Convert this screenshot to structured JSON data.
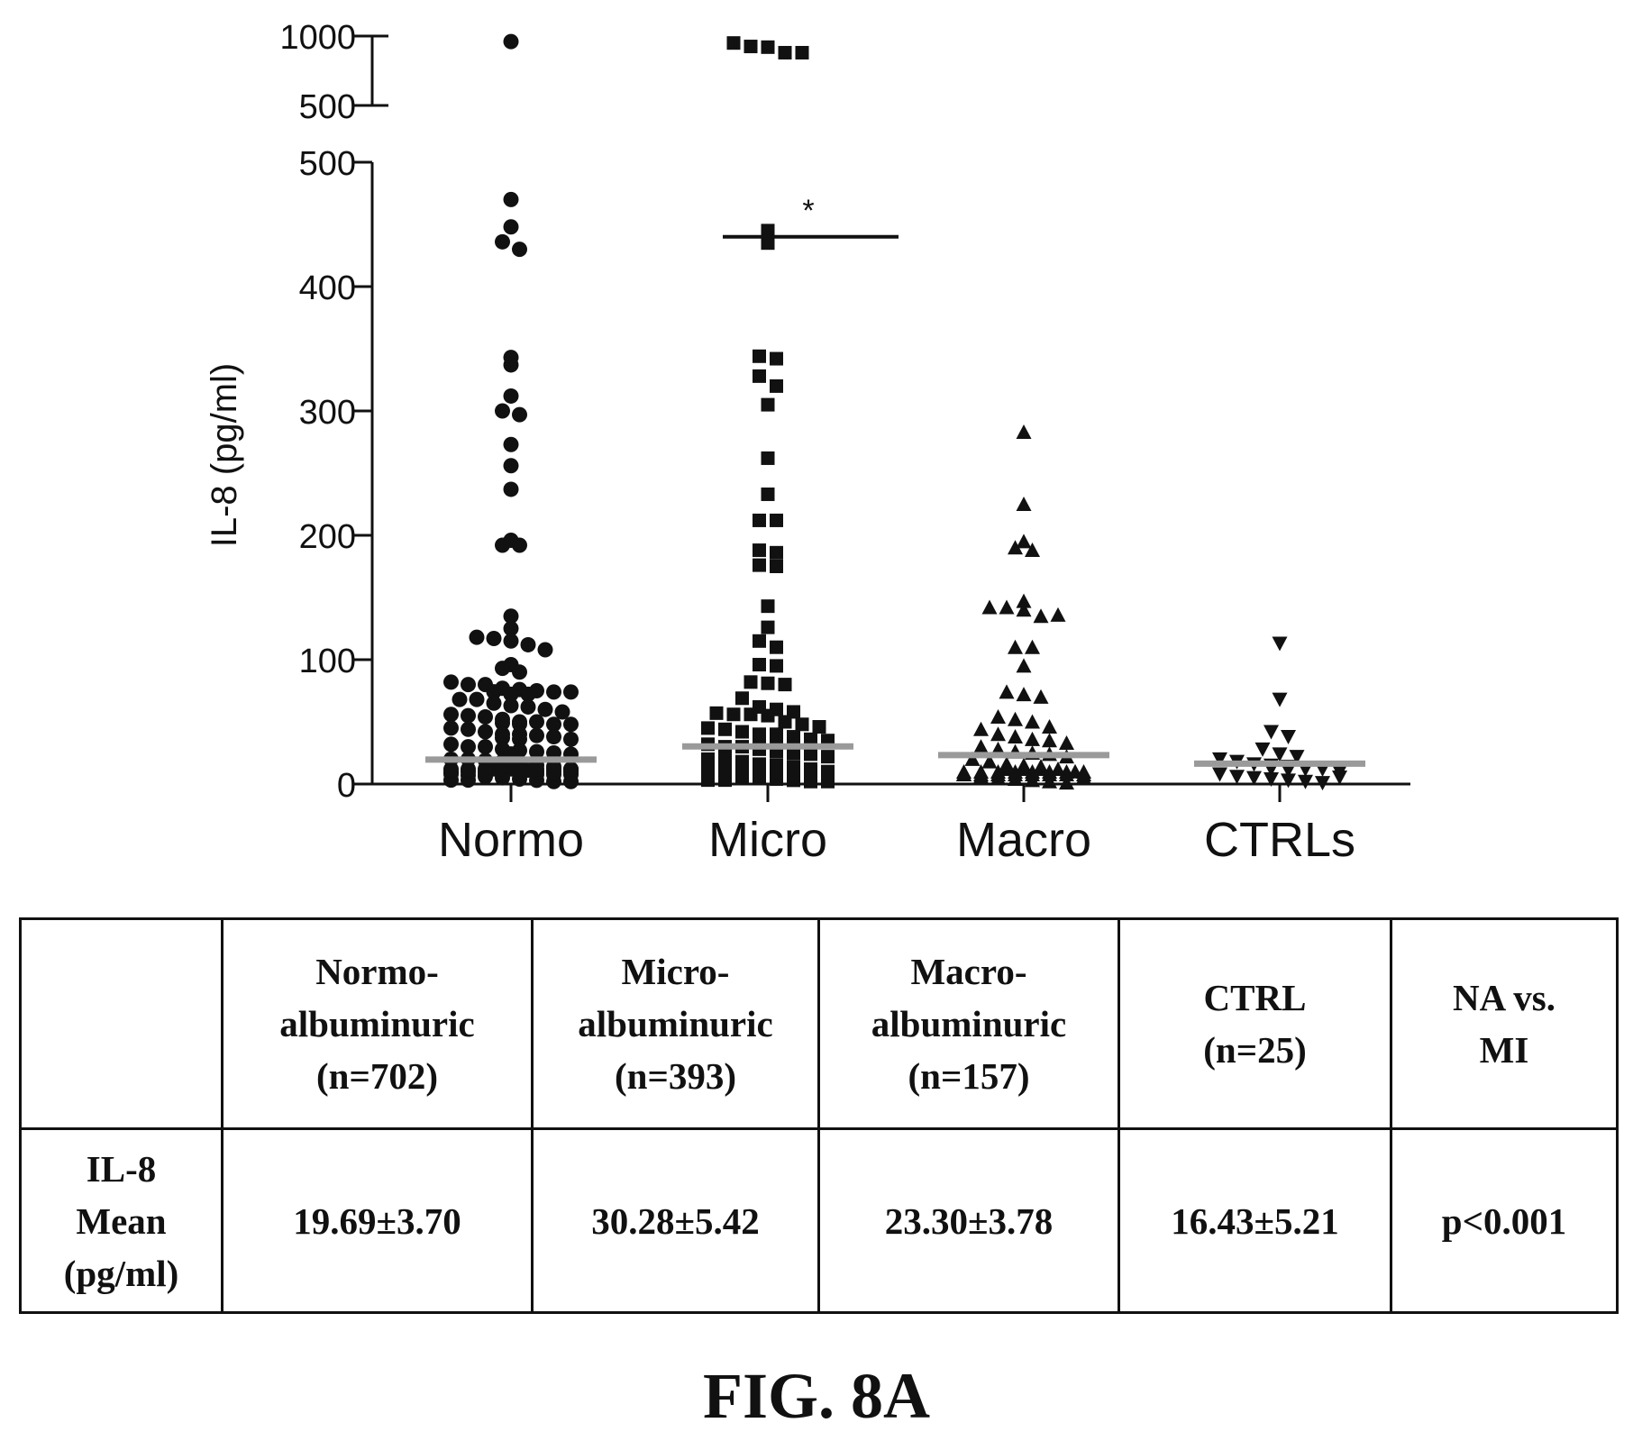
{
  "chart_data": {
    "type": "scatter",
    "title": "",
    "ylabel": "IL-8 (pg/ml)",
    "xlabel": "",
    "categories": [
      "Normo",
      "Micro",
      "Macro",
      "CTRLs"
    ],
    "y_axis": {
      "broken": true,
      "lower_segment": {
        "range": [
          0,
          500
        ],
        "ticks": [
          "0",
          "100",
          "200",
          "300",
          "400",
          "500"
        ]
      },
      "upper_segment": {
        "range": [
          500,
          1000
        ],
        "ticks": [
          "500",
          "1000"
        ]
      }
    },
    "markers": {
      "Normo": "circle",
      "Micro": "square",
      "Macro": "triangle-up",
      "CTRLs": "triangle-down"
    },
    "significance_marker": {
      "group": "Micro",
      "symbol": "*",
      "bar_value": 440
    },
    "series": [
      {
        "category": "Normo",
        "mean": 19.69,
        "values": [
          960,
          470,
          448,
          436,
          430,
          343,
          337,
          312,
          300,
          297,
          273,
          256,
          237,
          196,
          192,
          192,
          135,
          125,
          118,
          117,
          115,
          112,
          108,
          96,
          93,
          90,
          82,
          80,
          80,
          77,
          76,
          75,
          74,
          74,
          72,
          70,
          70,
          68,
          68,
          65,
          63,
          62,
          60,
          58,
          56,
          55,
          54,
          52,
          50,
          50,
          48,
          48,
          47,
          46,
          45,
          44,
          42,
          40,
          40,
          39,
          38,
          36,
          35,
          34,
          32,
          30,
          30,
          28,
          27,
          26,
          25,
          24,
          22,
          20,
          20,
          19,
          18,
          16,
          15,
          14,
          12,
          10,
          10,
          9,
          8,
          7,
          6,
          5,
          4,
          3,
          2,
          2,
          1,
          1,
          0,
          0,
          0,
          0,
          0,
          0,
          0,
          0,
          0,
          0,
          0,
          0,
          0,
          0,
          0,
          0,
          0,
          0,
          0,
          0,
          0,
          0,
          0,
          0
        ]
      },
      {
        "category": "Micro",
        "mean": 30.28,
        "values": [
          950,
          925,
          920,
          880,
          880,
          445,
          435,
          344,
          342,
          328,
          320,
          305,
          262,
          233,
          212,
          212,
          188,
          186,
          176,
          175,
          143,
          126,
          115,
          110,
          96,
          95,
          82,
          81,
          80,
          69,
          62,
          60,
          58,
          57,
          56,
          56,
          55,
          50,
          48,
          46,
          45,
          44,
          42,
          40,
          40,
          38,
          36,
          35,
          34,
          33,
          32,
          30,
          30,
          28,
          26,
          25,
          24,
          22,
          20,
          20,
          18,
          16,
          15,
          14,
          12,
          10,
          10,
          9,
          8,
          7,
          6,
          5,
          4,
          3,
          2,
          2,
          1,
          1,
          0,
          0,
          0,
          0,
          0,
          0,
          0,
          0,
          0,
          0,
          0,
          0,
          0,
          0,
          0,
          0,
          0,
          0,
          0,
          0
        ]
      },
      {
        "category": "Macro",
        "mean": 23.3,
        "values": [
          283,
          225,
          195,
          190,
          188,
          147,
          142,
          142,
          140,
          135,
          136,
          110,
          110,
          95,
          74,
          72,
          70,
          54,
          52,
          50,
          46,
          44,
          40,
          38,
          36,
          35,
          33,
          30,
          28,
          26,
          25,
          24,
          22,
          20,
          18,
          16,
          15,
          14,
          12,
          10,
          8,
          6,
          5,
          4,
          3,
          2,
          1,
          0,
          0,
          0,
          0,
          0,
          0,
          0,
          0,
          0,
          0,
          0,
          0,
          0,
          0,
          0,
          0,
          0,
          0,
          0,
          0
        ]
      },
      {
        "category": "CTRLs",
        "mean": 16.43,
        "values": [
          113,
          68,
          42,
          38,
          28,
          24,
          22,
          20,
          18,
          16,
          15,
          14,
          12,
          12,
          10,
          10,
          9,
          8,
          6,
          5,
          4,
          3,
          2,
          1,
          0
        ]
      }
    ]
  },
  "table": {
    "header": {
      "blank": "",
      "normo": [
        "Normo-",
        "albuminuric",
        "(n=702)"
      ],
      "micro": [
        "Micro-",
        "albuminuric",
        "(n=393)"
      ],
      "macro": [
        "Macro-",
        "albuminuric",
        "(n=157)"
      ],
      "ctrl": [
        "CTRL",
        "(n=25)"
      ],
      "compare": [
        "NA vs.",
        "MI"
      ]
    },
    "row": {
      "label": [
        "IL-8",
        "Mean",
        "(pg/ml)"
      ],
      "normo": "19.69±3.70",
      "micro": "30.28±5.42",
      "macro": "23.30±3.78",
      "ctrl": "16.43±5.21",
      "compare": "p<0.001"
    }
  },
  "figure_label": "FIG. 8A"
}
